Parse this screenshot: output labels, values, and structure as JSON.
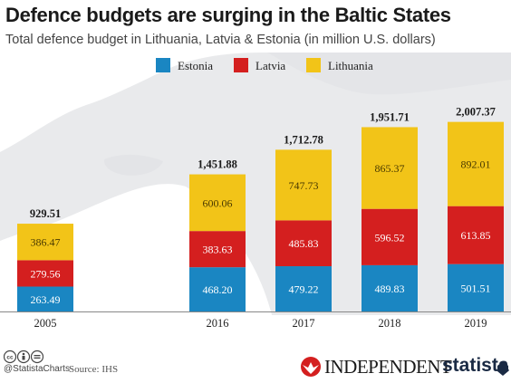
{
  "header": {
    "title": "Defence budgets are surging in the Baltic States",
    "subtitle": "Total defence budget in Lithuania, Latvia & Estonia (in million U.S. dollars)"
  },
  "legend": {
    "items": [
      {
        "label": "Estonia",
        "color": "#1a86c2"
      },
      {
        "label": "Latvia",
        "color": "#d41f1f"
      },
      {
        "label": "Lithuania",
        "color": "#f2c418"
      }
    ]
  },
  "footer": {
    "handle": "@StatistaCharts",
    "source": "Source: IHS",
    "publisher": "INDEPENDENT",
    "brand": "statista",
    "cc_icons": [
      "cc-icon",
      "by-icon",
      "nd-icon"
    ]
  },
  "chart_data": {
    "type": "bar",
    "stacked": true,
    "categories": [
      "2005",
      "2016",
      "2017",
      "2018",
      "2019"
    ],
    "series": [
      {
        "name": "Estonia",
        "color": "#1a86c2",
        "values": [
          263.49,
          468.2,
          479.22,
          489.83,
          501.51
        ],
        "labels": [
          "263.49",
          "468.20",
          "479.22",
          "489.83",
          "501.51"
        ]
      },
      {
        "name": "Latvia",
        "color": "#d41f1f",
        "values": [
          279.56,
          383.63,
          485.83,
          596.52,
          613.85
        ],
        "labels": [
          "279.56",
          "383.63",
          "485.83",
          "596.52",
          "613.85"
        ]
      },
      {
        "name": "Lithuania",
        "color": "#f2c418",
        "values": [
          386.47,
          600.06,
          747.73,
          865.37,
          892.01
        ],
        "labels": [
          "386.47",
          "600.06",
          "747.73",
          "865.37",
          "892.01"
        ]
      }
    ],
    "totals": [
      929.51,
      1451.88,
      1712.78,
      1951.71,
      2007.37
    ],
    "total_labels": [
      "929.51",
      "1,451.88",
      "1,712.78",
      "1,951.71",
      "2,007.37"
    ],
    "ylim": [
      0,
      2200
    ],
    "grid": false,
    "legend_position": "top-center"
  }
}
